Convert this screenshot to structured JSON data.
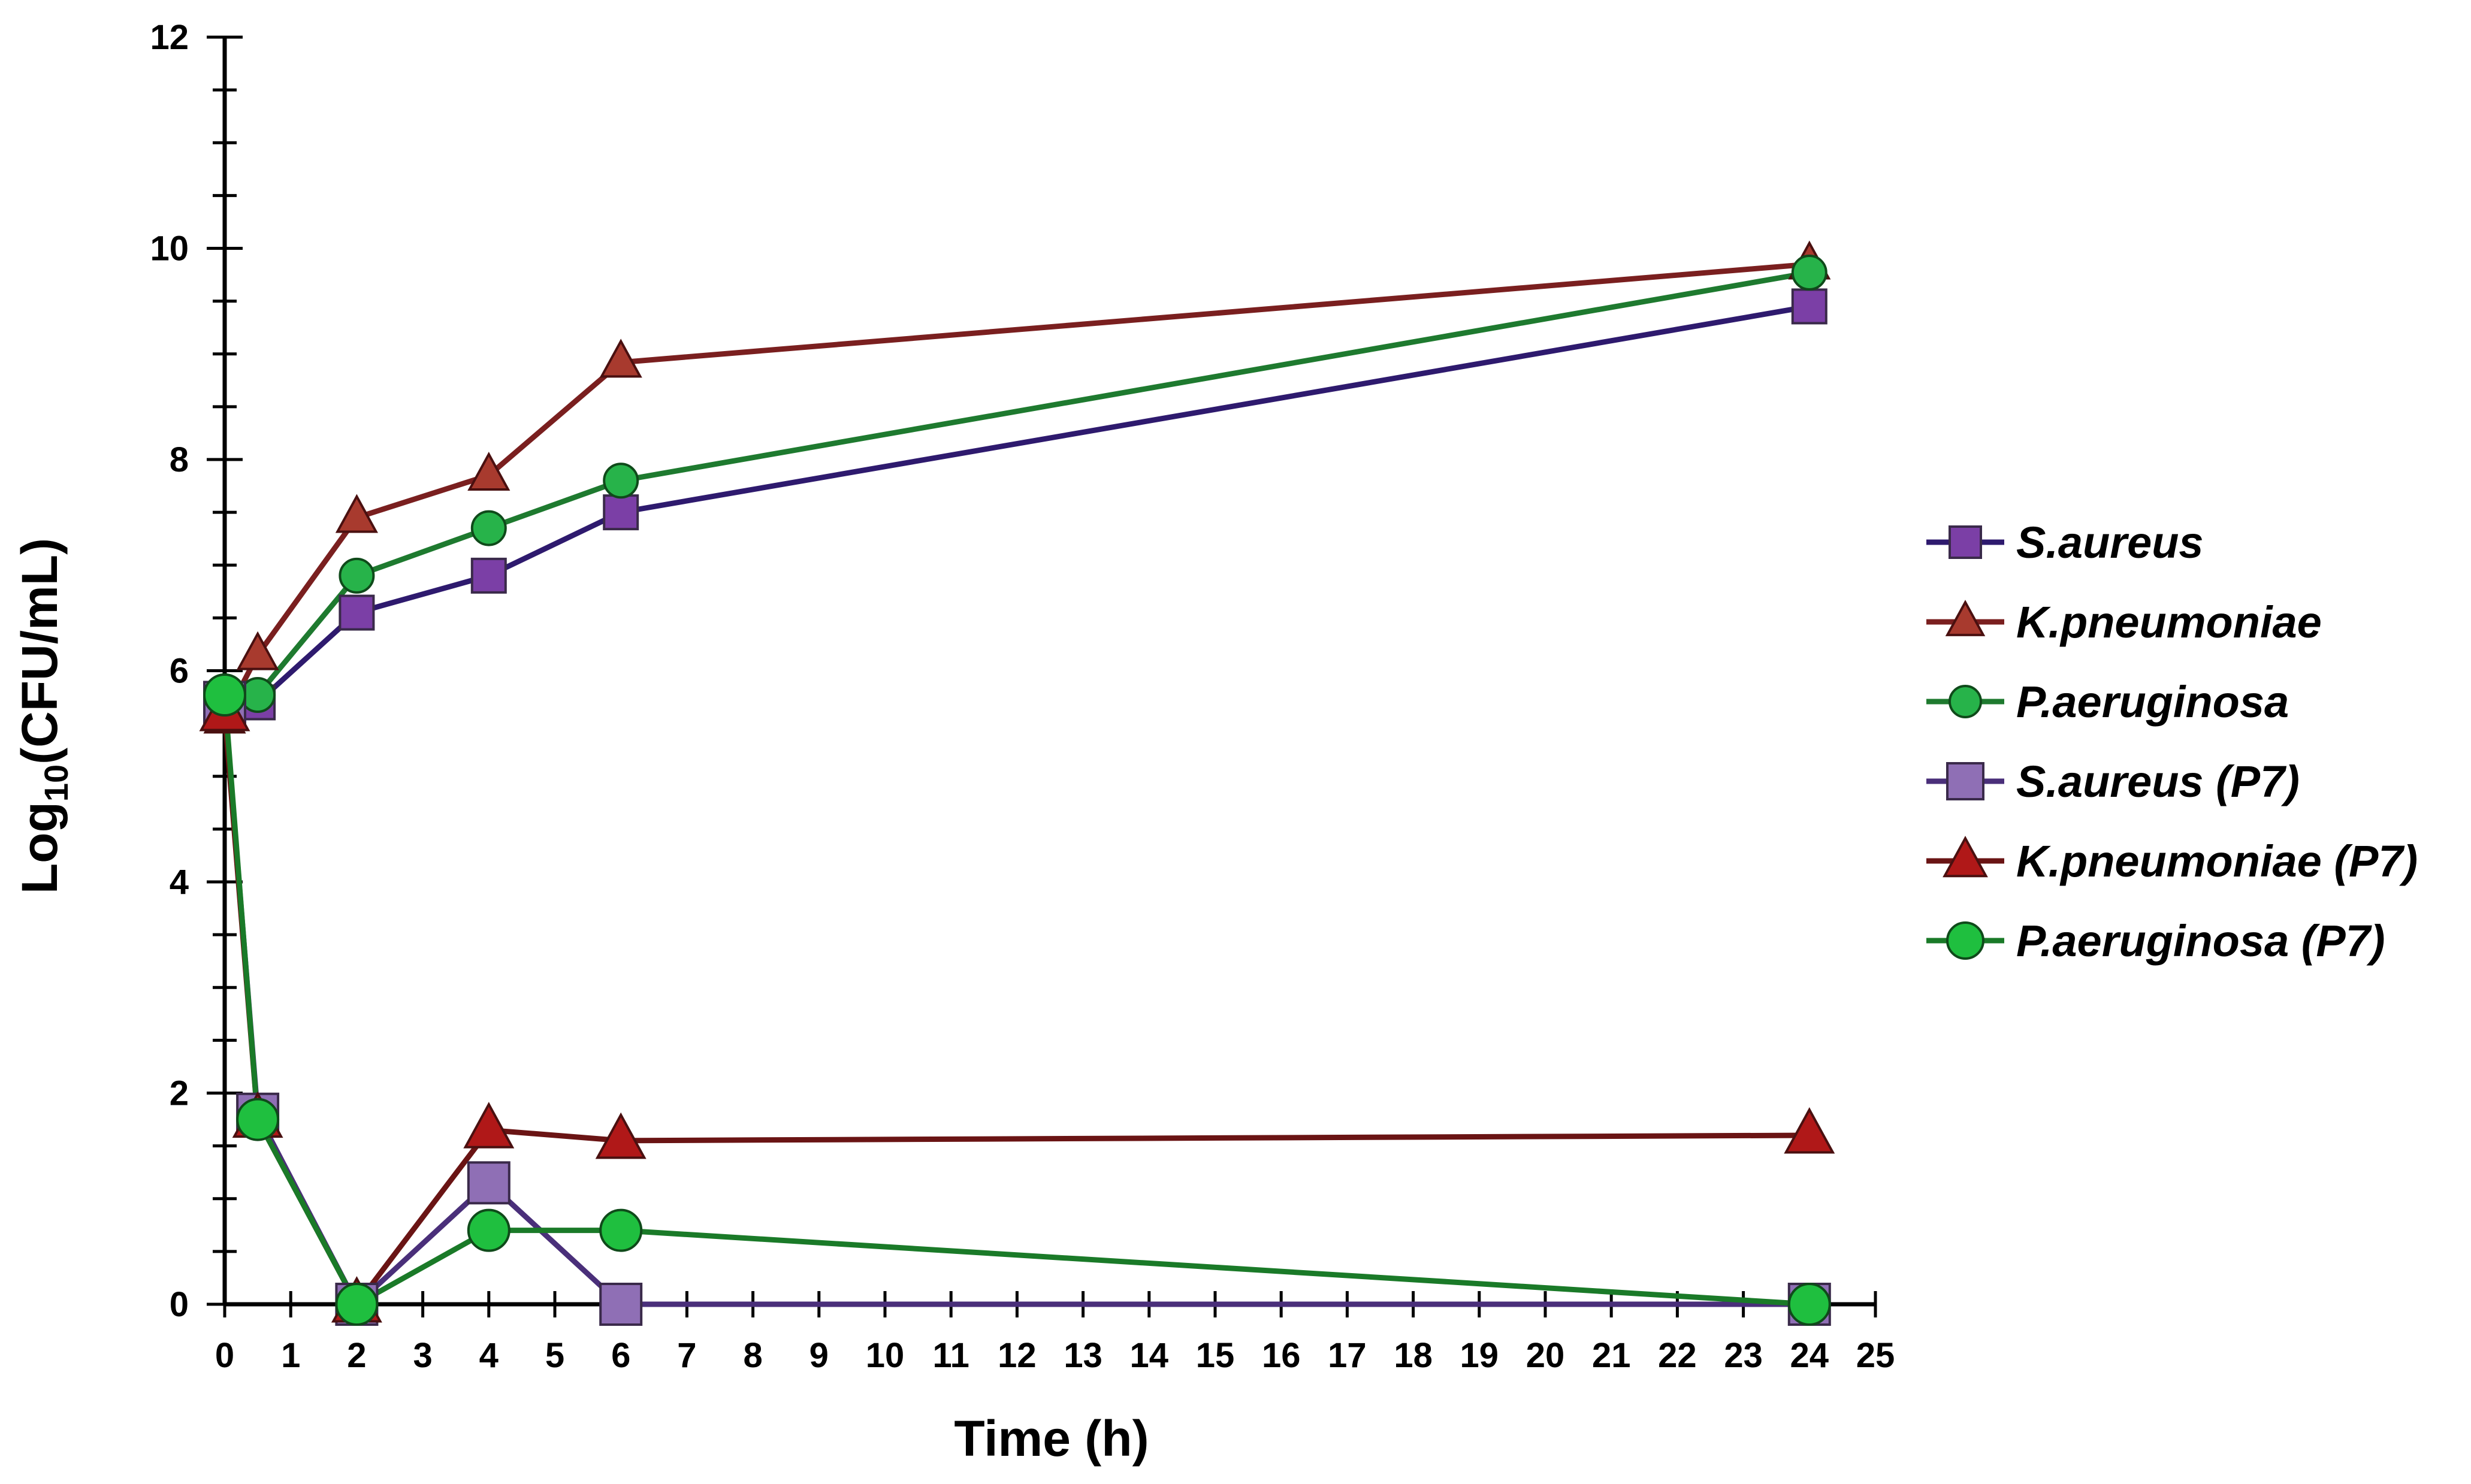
{
  "chart_data": {
    "type": "line",
    "title": "",
    "xlabel": "Time (h)",
    "ylabel_main": "Log",
    "ylabel_sub": "10",
    "ylabel_rest": "(CFU/mL)",
    "xlim": [
      0,
      25
    ],
    "ylim": [
      0,
      12
    ],
    "x_ticks": [
      0,
      1,
      2,
      3,
      4,
      5,
      6,
      7,
      8,
      9,
      10,
      11,
      12,
      13,
      14,
      15,
      16,
      17,
      18,
      19,
      20,
      21,
      22,
      23,
      24,
      25
    ],
    "y_ticks": [
      0,
      2,
      4,
      6,
      8,
      10,
      12
    ],
    "grid": false,
    "legend_position": "right",
    "x": [
      0,
      0.5,
      2,
      4,
      6,
      24
    ],
    "series": [
      {
        "name": "S.aureus",
        "marker": "square",
        "color": "#7b3fa6",
        "line_color": "#2e1a6e",
        "values": [
          5.7,
          5.7,
          6.55,
          6.9,
          7.5,
          9.45
        ]
      },
      {
        "name": "K.pneumoniae",
        "marker": "triangle",
        "color": "#a83a2e",
        "line_color": "#7a1f1f",
        "values": [
          5.55,
          6.15,
          7.45,
          7.85,
          8.92,
          9.85
        ]
      },
      {
        "name": "P.aeruginosa",
        "marker": "circle",
        "color": "#27b34a",
        "line_color": "#1e7a2f",
        "values": [
          5.77,
          5.77,
          6.9,
          7.35,
          7.8,
          9.77
        ]
      },
      {
        "name": "S.aureus (P7)",
        "marker": "square",
        "color": "#8f6fb5",
        "line_color": "#4a2f7a",
        "values": [
          5.7,
          1.8,
          0.0,
          1.15,
          0.0,
          0.0
        ]
      },
      {
        "name": "K.pneumoniae (P7)",
        "marker": "triangle",
        "color": "#b01818",
        "line_color": "#6a1414",
        "values": [
          5.6,
          1.75,
          0.0,
          1.65,
          1.55,
          1.6
        ]
      },
      {
        "name": "P.aeruginosa (P7)",
        "marker": "circle",
        "color": "#1fbf3f",
        "line_color": "#1a7a28",
        "values": [
          5.77,
          1.75,
          0.0,
          0.7,
          0.7,
          0.0
        ]
      }
    ]
  }
}
